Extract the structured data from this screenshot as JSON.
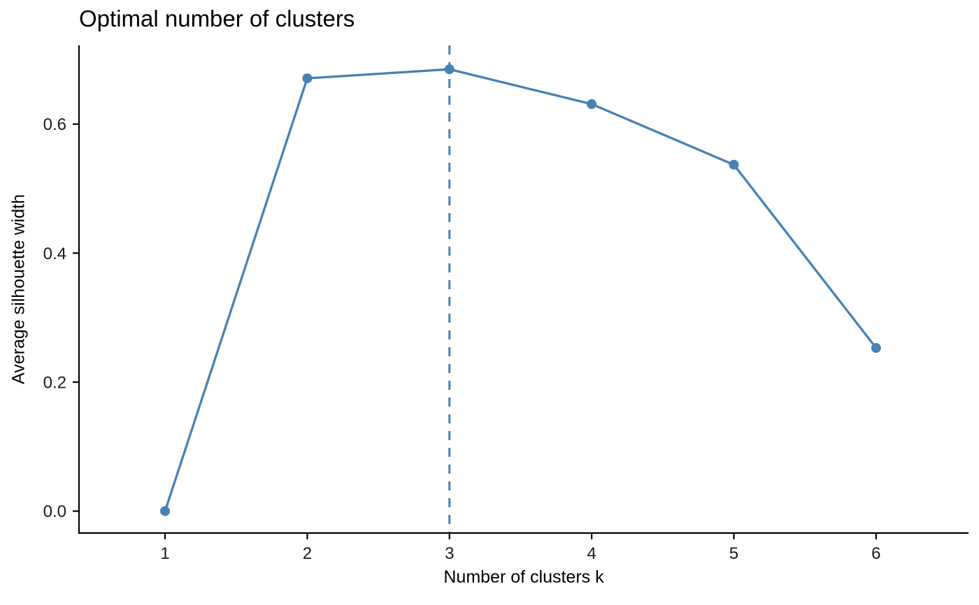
{
  "chart_data": {
    "type": "line",
    "title": "Optimal number of clusters",
    "xlabel": "Number of clusters k",
    "ylabel": "Average silhouette width",
    "x": [
      1,
      2,
      3,
      4,
      5,
      6
    ],
    "series": [
      {
        "name": "average-silhouette-width",
        "values": [
          0.0,
          0.671,
          0.685,
          0.631,
          0.537,
          0.253
        ]
      }
    ],
    "x_tick_values": [
      1,
      2,
      3,
      4,
      5,
      6
    ],
    "x_tick_labels": [
      "1",
      "2",
      "3",
      "4",
      "5",
      "6"
    ],
    "y_tick_values": [
      0.0,
      0.2,
      0.4,
      0.6
    ],
    "y_tick_labels": [
      "0.0",
      "0.2",
      "0.4",
      "0.6"
    ],
    "xlim": [
      0.395,
      6.65
    ],
    "ylim": [
      -0.034,
      0.722
    ],
    "vline_x": 3,
    "vline_style": "dashed",
    "grid": false,
    "legend_position": "none",
    "line_color": "#4682B4",
    "point_color": "#4682B4",
    "vline_color": "#4682B4",
    "axis_color": "#000000",
    "tick_text_color": "#1a1a1a"
  }
}
